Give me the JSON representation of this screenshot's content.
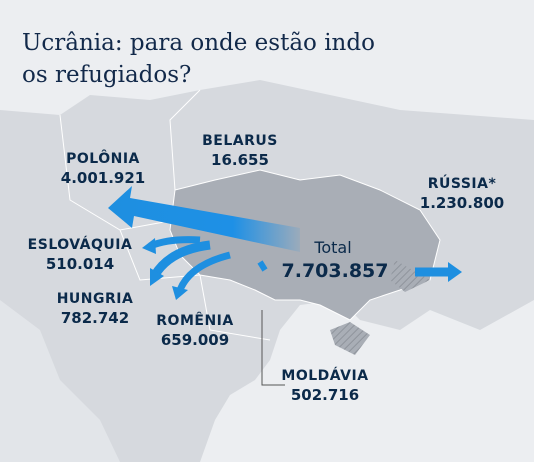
{
  "title": [
    "Ucrânia: para onde estão indo",
    "os refugiados?"
  ],
  "total": {
    "label": "Total",
    "value": "7.703.857"
  },
  "countries": [
    {
      "name": "POLÔNIA",
      "value": "4.001.921"
    },
    {
      "name": "BELARUS",
      "value": "16.655"
    },
    {
      "name": "RÚSSIA*",
      "value": "1.230.800"
    },
    {
      "name": "ESLOVÁQUIA",
      "value": "510.014"
    },
    {
      "name": "HUNGRIA",
      "value": "782.742"
    },
    {
      "name": "ROMÊNIA",
      "value": "659.009"
    },
    {
      "name": "MOLDÁVIA",
      "value": "502.716"
    }
  ]
}
